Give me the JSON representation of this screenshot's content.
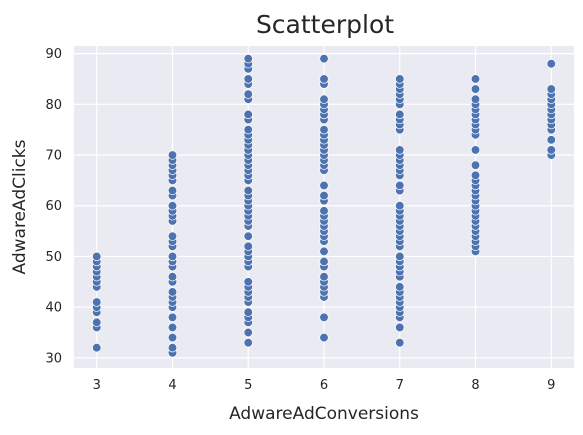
{
  "chart_data": {
    "type": "scatter",
    "title": "Scatterplot",
    "xlabel": "AdwareAdConversions",
    "ylabel": "AdwareAdClicks",
    "xlim": [
      2.7,
      9.3
    ],
    "ylim": [
      28,
      91.5
    ],
    "xticks": [
      3,
      4,
      5,
      6,
      7,
      8,
      9
    ],
    "yticks": [
      30,
      40,
      50,
      60,
      70,
      80,
      90
    ],
    "grid": true,
    "legend": false,
    "colors": {
      "background": "#eaeaf2",
      "grid": "#ffffff",
      "point": "#4c72b0",
      "text": "#262626"
    },
    "points": [
      {
        "x": 3,
        "y": [
          32,
          36,
          37,
          39,
          40,
          41,
          44,
          45,
          46,
          47,
          48,
          49,
          50
        ]
      },
      {
        "x": 4,
        "y": [
          31,
          32,
          34,
          36,
          38,
          40,
          41,
          42,
          43,
          45,
          46,
          48,
          49,
          50,
          52,
          53,
          54,
          57,
          58,
          59,
          60,
          62,
          63,
          65,
          66,
          67,
          68,
          69,
          70
        ]
      },
      {
        "x": 5,
        "y": [
          33,
          35,
          37,
          38,
          39,
          41,
          42,
          43,
          44,
          45,
          48,
          49,
          50,
          51,
          52,
          54,
          56,
          57,
          58,
          59,
          60,
          61,
          62,
          63,
          65,
          66,
          67,
          68,
          69,
          70,
          71,
          72,
          73,
          74,
          75,
          77,
          78,
          81,
          82,
          84,
          85,
          87,
          88,
          89
        ]
      },
      {
        "x": 6,
        "y": [
          34,
          38,
          42,
          43,
          44,
          45,
          46,
          48,
          49,
          51,
          53,
          54,
          55,
          56,
          57,
          58,
          59,
          61,
          62,
          64,
          67,
          68,
          69,
          70,
          71,
          72,
          73,
          74,
          75,
          77,
          78,
          79,
          80,
          81,
          84,
          85,
          89
        ]
      },
      {
        "x": 7,
        "y": [
          33,
          36,
          38,
          39,
          40,
          41,
          42,
          43,
          44,
          46,
          47,
          48,
          49,
          50,
          52,
          53,
          54,
          55,
          56,
          57,
          58,
          59,
          60,
          63,
          64,
          66,
          67,
          68,
          69,
          70,
          71,
          75,
          76,
          77,
          78,
          80,
          81,
          82,
          83,
          84,
          85
        ]
      },
      {
        "x": 8,
        "y": [
          51,
          52,
          53,
          54,
          55,
          56,
          57,
          58,
          59,
          60,
          61,
          62,
          63,
          64,
          65,
          66,
          68,
          71,
          74,
          75,
          76,
          77,
          78,
          79,
          80,
          81,
          83,
          85
        ]
      },
      {
        "x": 9,
        "y": [
          70,
          71,
          73,
          75,
          76,
          77,
          78,
          79,
          80,
          81,
          82,
          83,
          88
        ]
      }
    ]
  }
}
